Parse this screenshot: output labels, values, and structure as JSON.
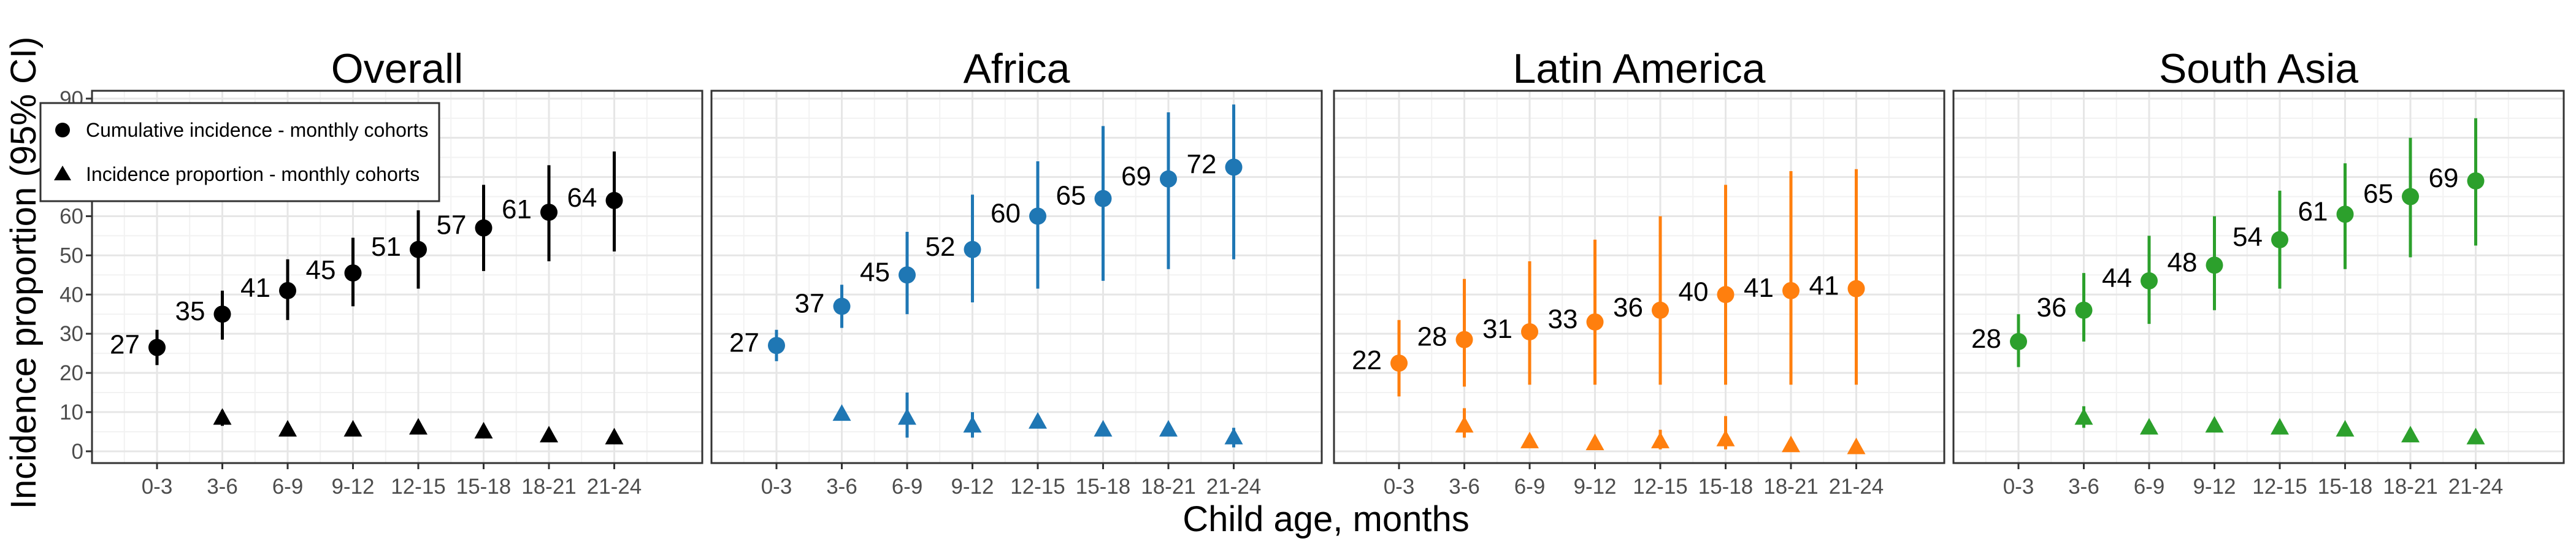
{
  "chart_data": {
    "type": "scatter",
    "xlabel": "Child age, months",
    "ylabel": "Incidence proportion (95% CI)",
    "ylim": [
      -3,
      92
    ],
    "yticks": [
      0,
      10,
      20,
      30,
      40,
      50,
      60,
      70,
      80,
      90
    ],
    "categories": [
      "0-3",
      "3-6",
      "6-9",
      "9-12",
      "12-15",
      "15-18",
      "18-21",
      "21-24"
    ],
    "grid": true,
    "legend": {
      "placement": "top-left",
      "entries": [
        {
          "marker": "circle",
          "label": "Cumulative incidence - monthly cohorts"
        },
        {
          "marker": "triangle",
          "label": "Incidence proportion - monthly cohorts"
        }
      ]
    },
    "panels": [
      {
        "title": "Overall",
        "color": "#000000",
        "series": [
          {
            "name": "Cumulative incidence - monthly cohorts",
            "marker": "circle",
            "values": [
              26.5,
              35,
              41,
              45.5,
              51.5,
              57,
              61,
              64
            ],
            "lower": [
              22,
              28.5,
              33.5,
              37,
              41.5,
              46,
              48.5,
              51
            ],
            "upper": [
              31,
              41,
              49,
              54.5,
              61.5,
              68,
              73,
              76.5
            ],
            "labels": [
              "27",
              "35",
              "41",
              "45",
              "51",
              "57",
              "61",
              "64"
            ]
          },
          {
            "name": "Incidence proportion - monthly cohorts",
            "marker": "triangle",
            "values": [
              null,
              8.5,
              5.5,
              5.5,
              6,
              5,
              4,
              3.5
            ],
            "lower": [
              null,
              6.5,
              null,
              null,
              null,
              null,
              null,
              null
            ],
            "upper": [
              null,
              10.5,
              null,
              null,
              null,
              null,
              null,
              null
            ]
          }
        ]
      },
      {
        "title": "Africa",
        "color": "#1f77b4",
        "series": [
          {
            "name": "Cumulative incidence - monthly cohorts",
            "marker": "circle",
            "values": [
              27,
              37,
              45,
              51.5,
              60,
              64.5,
              69.5,
              72.5
            ],
            "lower": [
              23,
              31.5,
              35,
              38,
              41.5,
              43.5,
              46.5,
              49
            ],
            "upper": [
              31,
              42.5,
              56,
              65.5,
              74,
              83,
              86.5,
              88.5
            ],
            "labels": [
              "27",
              "37",
              "45",
              "52",
              "60",
              "65",
              "69",
              "72"
            ]
          },
          {
            "name": "Incidence proportion - monthly cohorts",
            "marker": "triangle",
            "values": [
              null,
              9.5,
              8.5,
              6.5,
              7.5,
              5.5,
              5.5,
              3.5
            ],
            "lower": [
              null,
              null,
              3.5,
              3.5,
              null,
              null,
              null,
              1
            ],
            "upper": [
              null,
              null,
              15,
              10,
              null,
              null,
              null,
              6
            ]
          }
        ]
      },
      {
        "title": "Latin America",
        "color": "#ff7f0e",
        "series": [
          {
            "name": "Cumulative incidence - monthly cohorts",
            "marker": "circle",
            "values": [
              22.5,
              28.5,
              30.5,
              33,
              36,
              40,
              41,
              41.5
            ],
            "lower": [
              14,
              16.5,
              17,
              17,
              17,
              17,
              17,
              17
            ],
            "upper": [
              33.5,
              44,
              48.5,
              54,
              60,
              68,
              71.5,
              72
            ],
            "labels": [
              "22",
              "28",
              "31",
              "33",
              "36",
              "40",
              "41",
              "41"
            ]
          },
          {
            "name": "Incidence proportion - monthly cohorts",
            "marker": "triangle",
            "values": [
              null,
              6.5,
              2.5,
              2,
              2.5,
              3,
              1.5,
              1
            ],
            "lower": [
              null,
              3.5,
              null,
              null,
              0.5,
              0.5,
              null,
              null
            ],
            "upper": [
              null,
              11,
              null,
              null,
              5.5,
              9,
              null,
              null
            ]
          }
        ]
      },
      {
        "title": "South Asia",
        "color": "#2ca02c",
        "series": [
          {
            "name": "Cumulative incidence - monthly cohorts",
            "marker": "circle",
            "values": [
              28,
              36,
              43.5,
              47.5,
              54,
              60.5,
              65,
              69
            ],
            "lower": [
              21.5,
              28,
              32.5,
              36,
              41.5,
              46.5,
              49.5,
              52.5
            ],
            "upper": [
              35,
              45.5,
              55,
              60,
              66.5,
              73.5,
              80,
              85
            ],
            "labels": [
              "28",
              "36",
              "44",
              "48",
              "54",
              "61",
              "65",
              "69"
            ]
          },
          {
            "name": "Incidence proportion - monthly cohorts",
            "marker": "triangle",
            "values": [
              null,
              8.5,
              6,
              6.5,
              6,
              5.5,
              4,
              3.5
            ],
            "lower": [
              null,
              6,
              null,
              null,
              null,
              null,
              null,
              null
            ],
            "upper": [
              null,
              11.5,
              null,
              null,
              null,
              null,
              null,
              null
            ]
          }
        ]
      }
    ]
  }
}
